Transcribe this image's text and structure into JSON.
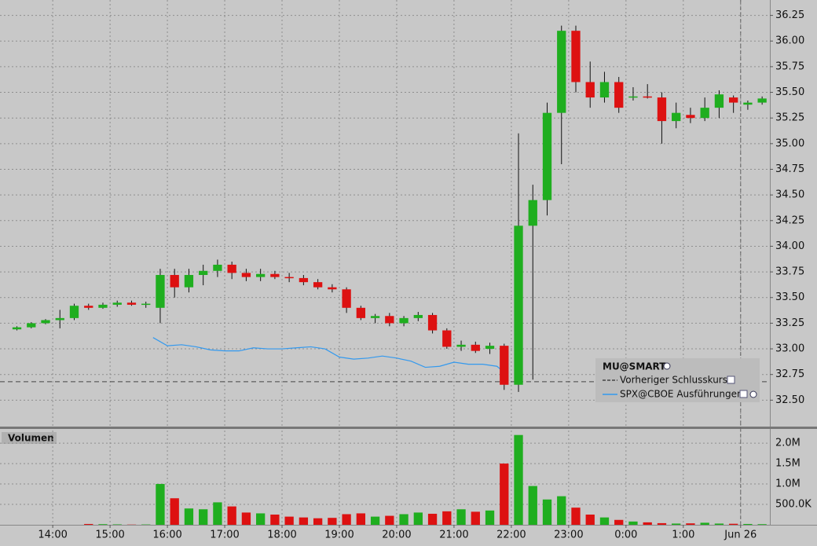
{
  "chart_data": {
    "type": "candlestick",
    "legend_title": "MU@SMART",
    "x": [
      13.25,
      13.5,
      13.75,
      14,
      14.25,
      14.5,
      14.75,
      15,
      15.25,
      15.5,
      15.75,
      16,
      16.25,
      16.5,
      16.75,
      17,
      17.25,
      17.5,
      17.75,
      18,
      18.25,
      18.5,
      18.75,
      19,
      19.25,
      19.5,
      19.75,
      20,
      20.25,
      20.5,
      20.75,
      21,
      21.25,
      21.5,
      21.75,
      22,
      22.25,
      22.5,
      22.75,
      23,
      23.25,
      23.5,
      23.75,
      24,
      24.25,
      24.5,
      24.75,
      25,
      25.25,
      25.5,
      25.75,
      26,
      26.25
    ],
    "open": [
      33.19,
      33.21,
      33.25,
      33.28,
      33.3,
      33.42,
      33.4,
      33.43,
      33.45,
      33.43,
      33.4,
      33.72,
      33.6,
      33.72,
      33.76,
      33.82,
      33.74,
      33.7,
      33.73,
      33.7,
      33.69,
      33.65,
      33.6,
      33.58,
      33.4,
      33.3,
      33.32,
      33.25,
      33.3,
      33.33,
      33.18,
      33.02,
      33.04,
      33.0,
      33.03,
      32.65,
      34.2,
      34.45,
      35.3,
      36.1,
      35.6,
      35.45,
      35.6,
      35.45,
      35.46,
      35.45,
      35.22,
      35.28,
      35.25,
      35.35,
      35.45,
      35.38,
      35.4
    ],
    "high": [
      33.22,
      33.26,
      33.29,
      33.38,
      33.44,
      33.44,
      33.45,
      33.47,
      33.47,
      33.46,
      33.78,
      33.78,
      33.78,
      33.82,
      33.87,
      33.85,
      33.78,
      33.78,
      33.76,
      33.74,
      33.72,
      33.68,
      33.63,
      33.6,
      33.42,
      33.34,
      33.35,
      33.32,
      33.36,
      33.35,
      33.2,
      33.08,
      33.07,
      33.06,
      33.05,
      35.1,
      34.6,
      35.4,
      36.15,
      36.15,
      35.8,
      35.7,
      35.65,
      35.55,
      35.58,
      35.5,
      35.4,
      35.35,
      35.45,
      35.52,
      35.47,
      35.42,
      35.46
    ],
    "low": [
      33.18,
      33.2,
      33.24,
      33.2,
      33.28,
      33.38,
      33.39,
      33.41,
      33.42,
      33.4,
      33.25,
      33.5,
      33.55,
      33.62,
      33.7,
      33.68,
      33.66,
      33.66,
      33.68,
      33.65,
      33.62,
      33.58,
      33.55,
      33.35,
      33.28,
      33.25,
      33.22,
      33.22,
      33.27,
      33.15,
      33.0,
      32.98,
      32.96,
      32.95,
      32.6,
      32.58,
      32.7,
      34.3,
      34.8,
      35.5,
      35.35,
      35.4,
      35.3,
      35.42,
      35.44,
      35.0,
      35.15,
      35.2,
      35.22,
      35.25,
      35.3,
      35.33,
      35.38
    ],
    "close": [
      33.21,
      33.25,
      33.28,
      33.3,
      33.42,
      33.4,
      33.43,
      33.45,
      33.43,
      33.44,
      33.72,
      33.6,
      33.72,
      33.76,
      33.82,
      33.74,
      33.7,
      33.73,
      33.7,
      33.69,
      33.65,
      33.6,
      33.58,
      33.4,
      33.3,
      33.32,
      33.25,
      33.3,
      33.33,
      33.18,
      33.02,
      33.04,
      32.98,
      33.03,
      32.65,
      34.2,
      34.45,
      35.3,
      36.1,
      35.6,
      35.45,
      35.6,
      35.35,
      35.46,
      35.45,
      35.22,
      35.3,
      35.25,
      35.35,
      35.48,
      35.4,
      35.4,
      35.44
    ],
    "colors": {
      "up": "#1fae1f",
      "down": "#dd1111",
      "flat": "#f0e020"
    },
    "xlim": [
      13.08,
      26.51
    ],
    "ylim": [
      32.25,
      36.4
    ],
    "yticks": [
      {
        "value": 32.5,
        "label": "32.50"
      },
      {
        "value": 32.75,
        "label": "32.75"
      },
      {
        "value": 33,
        "label": "33.00"
      },
      {
        "value": 33.25,
        "label": "33.25"
      },
      {
        "value": 33.5,
        "label": "33.50"
      },
      {
        "value": 33.75,
        "label": "33.75"
      },
      {
        "value": 34,
        "label": "34.00"
      },
      {
        "value": 34.25,
        "label": "34.25"
      },
      {
        "value": 34.5,
        "label": "34.50"
      },
      {
        "value": 34.75,
        "label": "34.75"
      },
      {
        "value": 35,
        "label": "35.00"
      },
      {
        "value": 35.25,
        "label": "35.25"
      },
      {
        "value": 35.5,
        "label": "35.50"
      },
      {
        "value": 35.75,
        "label": "35.75"
      },
      {
        "value": 36,
        "label": "36.00"
      },
      {
        "value": 36.25,
        "label": "36.25"
      }
    ],
    "xticks": [
      {
        "value": 14,
        "label": "14:00"
      },
      {
        "value": 15,
        "label": "15:00"
      },
      {
        "value": 16,
        "label": "16:00"
      },
      {
        "value": 17,
        "label": "17:00"
      },
      {
        "value": 18,
        "label": "18:00"
      },
      {
        "value": 19,
        "label": "19:00"
      },
      {
        "value": 20,
        "label": "20:00"
      },
      {
        "value": 21,
        "label": "21:00"
      },
      {
        "value": 22,
        "label": "22:00"
      },
      {
        "value": 23,
        "label": "23:00"
      },
      {
        "value": 24,
        "label": "0:00"
      },
      {
        "value": 25,
        "label": "1:00"
      },
      {
        "value": 26,
        "label": "Jun 26"
      }
    ],
    "session_break": 26,
    "grid": true,
    "reference_line": {
      "name": "Vorheriger Schlusskurs",
      "value": 32.68,
      "color": "#444444"
    },
    "spx": {
      "name": "SPX@CBOE Ausführungen",
      "color": "#3399ee",
      "x": [
        15.75,
        16,
        16.25,
        16.5,
        16.75,
        17,
        17.25,
        17.5,
        17.75,
        18,
        18.25,
        18.5,
        18.75,
        19,
        19.25,
        19.5,
        19.75,
        20,
        20.25,
        20.5,
        20.75,
        21,
        21.25,
        21.5,
        21.75,
        21.9
      ],
      "values": [
        33.11,
        33.03,
        33.04,
        33.02,
        32.99,
        32.98,
        32.98,
        33.01,
        33.0,
        33.0,
        33.01,
        33.02,
        33.0,
        32.92,
        32.9,
        32.91,
        32.93,
        32.91,
        32.88,
        32.82,
        32.83,
        32.87,
        32.85,
        32.85,
        32.83,
        32.76
      ]
    },
    "volume": {
      "title": "Volumen",
      "values": [
        0,
        0,
        0,
        0,
        0,
        20000,
        15000,
        10000,
        5000,
        8000,
        1000000,
        650000,
        400000,
        380000,
        550000,
        450000,
        300000,
        280000,
        250000,
        200000,
        180000,
        160000,
        170000,
        260000,
        280000,
        200000,
        220000,
        260000,
        300000,
        270000,
        330000,
        380000,
        320000,
        350000,
        1500000,
        2200000,
        950000,
        620000,
        700000,
        420000,
        250000,
        180000,
        120000,
        80000,
        60000,
        40000,
        30000,
        35000,
        50000,
        30000,
        25000,
        20000,
        15000
      ],
      "ylim": [
        0,
        2310000
      ],
      "yticks": [
        {
          "value": 500000,
          "label": "500.0K"
        },
        {
          "value": 1000000,
          "label": "1.0M"
        },
        {
          "value": 1500000,
          "label": "1.5M"
        },
        {
          "value": 2000000,
          "label": "2.0M"
        }
      ]
    }
  }
}
